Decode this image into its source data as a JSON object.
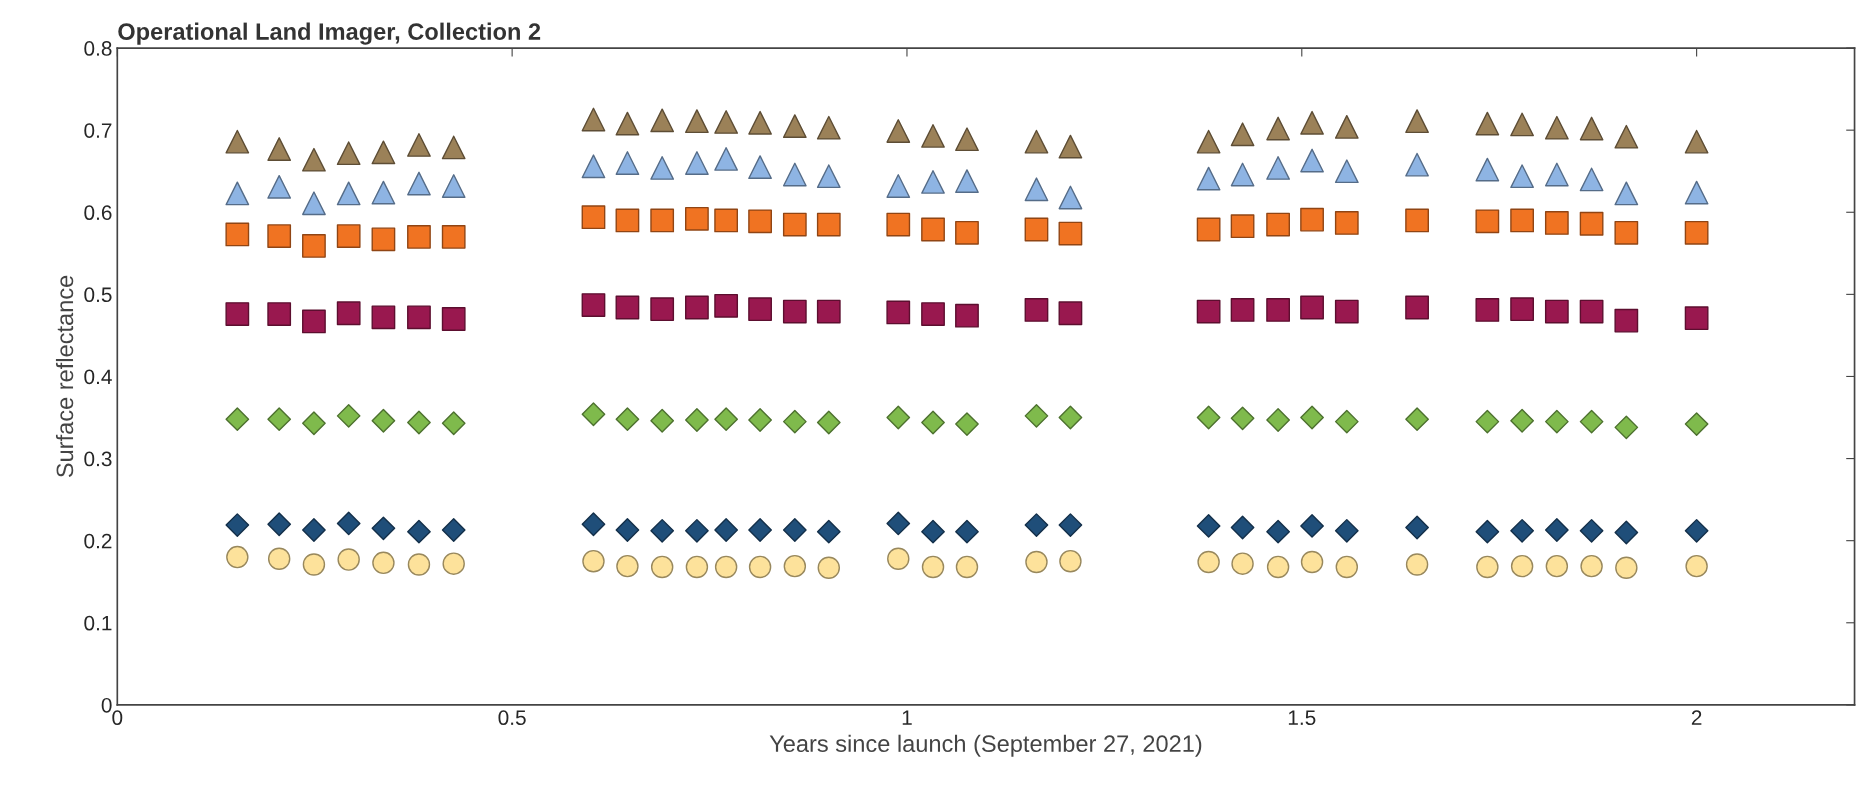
{
  "chart_data": {
    "type": "scatter",
    "title": "Operational Land Imager, Collection 2",
    "xlabel": "Years since launch (September 27, 2021)",
    "ylabel": "Surface reflectance",
    "x": [
      0.152,
      0.205,
      0.249,
      0.293,
      0.337,
      0.382,
      0.426,
      0.603,
      0.646,
      0.69,
      0.734,
      0.771,
      0.814,
      0.858,
      0.901,
      0.989,
      1.033,
      1.076,
      1.164,
      1.207,
      1.382,
      1.425,
      1.47,
      1.513,
      1.557,
      1.646,
      1.735,
      1.779,
      1.823,
      1.867,
      1.911,
      2.0
    ],
    "series": [
      {
        "color": "#9b8158",
        "marker": "triangle",
        "values": [
          0.686,
          0.677,
          0.664,
          0.672,
          0.673,
          0.682,
          0.679,
          0.713,
          0.708,
          0.712,
          0.711,
          0.71,
          0.709,
          0.705,
          0.703,
          0.699,
          0.693,
          0.689,
          0.686,
          0.68,
          0.686,
          0.695,
          0.702,
          0.709,
          0.704,
          0.711,
          0.708,
          0.707,
          0.703,
          0.702,
          0.692,
          0.686
        ]
      },
      {
        "color": "#8eb4e3",
        "marker": "triangle",
        "values": [
          0.623,
          0.631,
          0.611,
          0.623,
          0.624,
          0.635,
          0.632,
          0.656,
          0.66,
          0.654,
          0.66,
          0.665,
          0.655,
          0.646,
          0.644,
          0.632,
          0.637,
          0.638,
          0.628,
          0.618,
          0.641,
          0.646,
          0.654,
          0.663,
          0.65,
          0.658,
          0.652,
          0.644,
          0.646,
          0.64,
          0.623,
          0.624
        ]
      },
      {
        "color": "#f07322",
        "marker": "square",
        "values": [
          0.573,
          0.571,
          0.559,
          0.571,
          0.567,
          0.57,
          0.57,
          0.594,
          0.59,
          0.59,
          0.592,
          0.59,
          0.589,
          0.585,
          0.585,
          0.585,
          0.579,
          0.575,
          0.579,
          0.574,
          0.579,
          0.583,
          0.585,
          0.591,
          0.587,
          0.59,
          0.589,
          0.59,
          0.587,
          0.586,
          0.575,
          0.575
        ]
      },
      {
        "color": "#99184f",
        "marker": "square",
        "values": [
          0.476,
          0.476,
          0.467,
          0.477,
          0.472,
          0.472,
          0.47,
          0.487,
          0.484,
          0.482,
          0.484,
          0.486,
          0.482,
          0.479,
          0.479,
          0.478,
          0.476,
          0.474,
          0.481,
          0.477,
          0.479,
          0.481,
          0.481,
          0.484,
          0.479,
          0.484,
          0.481,
          0.482,
          0.479,
          0.479,
          0.468,
          0.471
        ]
      },
      {
        "color": "#7fba4c",
        "marker": "diamond",
        "values": [
          0.348,
          0.348,
          0.343,
          0.352,
          0.346,
          0.344,
          0.343,
          0.354,
          0.348,
          0.346,
          0.347,
          0.348,
          0.347,
          0.345,
          0.344,
          0.35,
          0.344,
          0.342,
          0.352,
          0.35,
          0.35,
          0.349,
          0.347,
          0.35,
          0.345,
          0.348,
          0.345,
          0.346,
          0.345,
          0.345,
          0.338,
          0.342
        ]
      },
      {
        "color": "#1f4e79",
        "marker": "diamond",
        "values": [
          0.219,
          0.22,
          0.213,
          0.221,
          0.215,
          0.211,
          0.213,
          0.22,
          0.213,
          0.212,
          0.212,
          0.213,
          0.213,
          0.213,
          0.211,
          0.221,
          0.211,
          0.211,
          0.219,
          0.219,
          0.218,
          0.216,
          0.211,
          0.218,
          0.212,
          0.216,
          0.211,
          0.212,
          0.213,
          0.212,
          0.21,
          0.212
        ]
      },
      {
        "color": "#fde29b",
        "marker": "circle",
        "values": [
          0.18,
          0.178,
          0.171,
          0.177,
          0.173,
          0.171,
          0.172,
          0.175,
          0.169,
          0.168,
          0.168,
          0.168,
          0.168,
          0.169,
          0.167,
          0.178,
          0.168,
          0.168,
          0.174,
          0.175,
          0.174,
          0.172,
          0.168,
          0.174,
          0.168,
          0.171,
          0.168,
          0.169,
          0.169,
          0.169,
          0.167,
          0.169
        ]
      }
    ],
    "xlim": [
      0,
      2.2
    ],
    "xticks": [
      0,
      0.5,
      1,
      1.5,
      2
    ],
    "ylim": [
      0,
      0.8
    ],
    "yticks": [
      0,
      0.1,
      0.2,
      0.3,
      0.4,
      0.5,
      0.6,
      0.7,
      0.8
    ],
    "grid": false
  }
}
